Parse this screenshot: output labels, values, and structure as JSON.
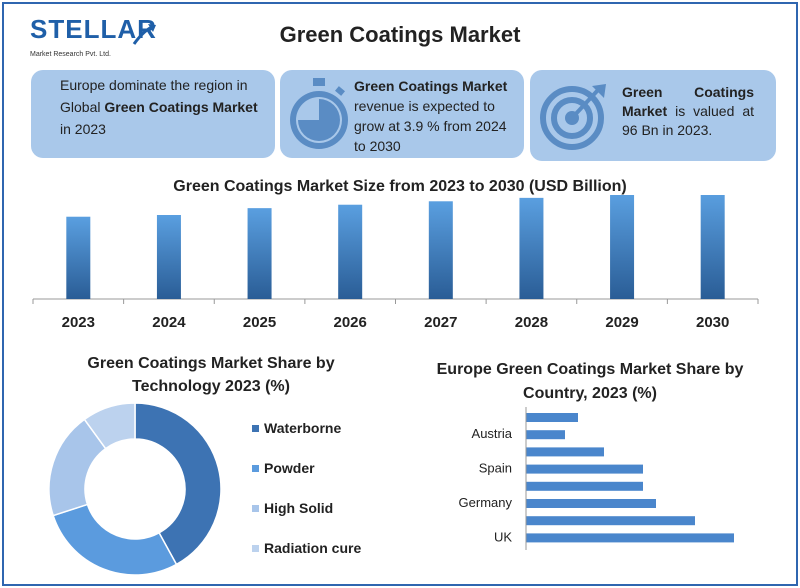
{
  "logo": {
    "name": "STELLAR",
    "tagline": "Market Research Pvt. Ltd."
  },
  "title": "Green Coatings Market",
  "cards": [
    {
      "parts": [
        "Europe dominate the region in Global ",
        "Green Coatings Market",
        " in 2023"
      ]
    },
    {
      "icon": "stopwatch-icon",
      "parts": [
        "Green Coatings Market",
        " revenue is expected to grow at 3.9 % from 2024 to 2030"
      ]
    },
    {
      "icon": "target-icon",
      "parts": [
        "Green Coatings Market",
        " is valued at 96 Bn in 2023."
      ]
    }
  ],
  "colors": {
    "card_bg": "#a9c8ea",
    "bar_top": "#5a9fe0",
    "bar_bottom": "#2a5d96",
    "border": "#2f66b0"
  },
  "chart_data": [
    {
      "type": "bar",
      "title": "Green Coatings Market Size from 2023 to 2030 (USD Billion)",
      "categories": [
        "2023",
        "2024",
        "2025",
        "2026",
        "2027",
        "2028",
        "2029",
        "2030"
      ],
      "values": [
        96,
        98,
        106,
        110,
        114,
        118,
        122,
        124
      ],
      "ylim": [
        0,
        140
      ],
      "grid": false,
      "legend": "none"
    },
    {
      "type": "pie",
      "title": "Green Coatings Market Share by Technology 2023 (%)",
      "donut": true,
      "labels": [
        "Waterborne",
        "Powder",
        "High Solid",
        "Radiation cure"
      ],
      "values": [
        42,
        28,
        20,
        10
      ],
      "colors": [
        "#3d73b3",
        "#5b9bde",
        "#a8c5ea",
        "#bcd2ee"
      ],
      "legend": "right"
    },
    {
      "type": "bar",
      "orientation": "horizontal",
      "title": "Europe Green Coatings Market   Share by Country, 2023 (%)",
      "categories": [
        "",
        "Austria",
        "",
        "Spain",
        "",
        "Germany",
        "",
        "UK"
      ],
      "values": [
        4,
        3,
        6,
        9,
        9,
        10,
        13,
        16
      ],
      "grid": false,
      "legend": "none"
    }
  ]
}
